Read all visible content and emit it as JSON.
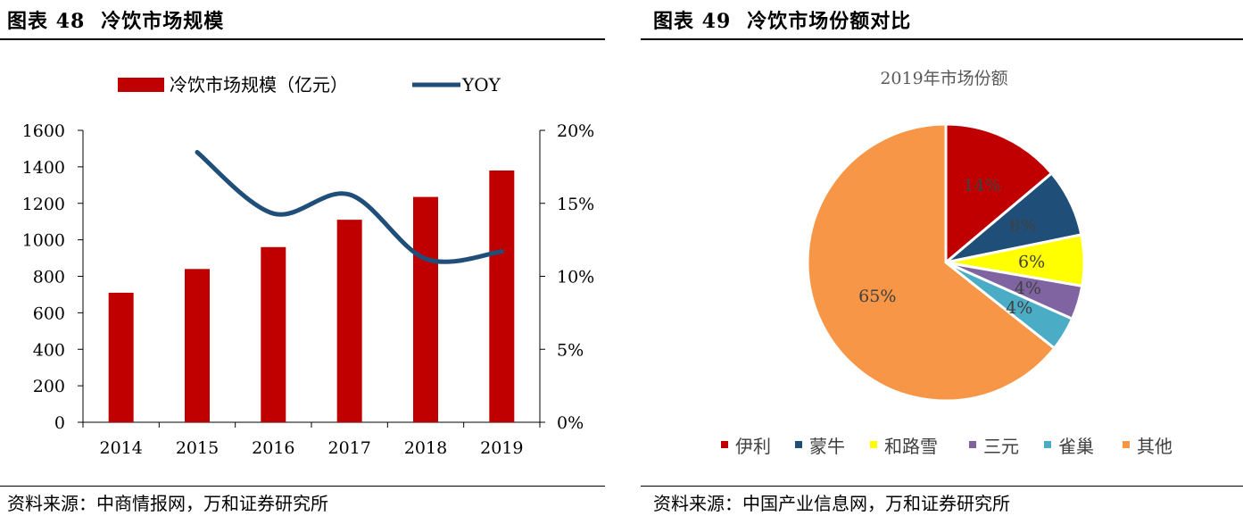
{
  "left": {
    "figure_no": "图表 48",
    "title": "冷饮市场规模",
    "source": "资料来源：中商情报网，万和证券研究所"
  },
  "right": {
    "figure_no": "图表 49",
    "title": "冷饮市场份额对比",
    "source": "资料来源：中国产业信息网，万和证券研究所"
  },
  "chart_data": [
    {
      "type": "bar",
      "title": "",
      "categories": [
        "2014",
        "2015",
        "2016",
        "2017",
        "2018",
        "2019"
      ],
      "series": [
        {
          "name": "冷饮市场规模（亿元）",
          "type": "bar",
          "axis": "left",
          "color": "#C00000",
          "values": [
            710,
            840,
            960,
            1110,
            1235,
            1380
          ]
        },
        {
          "name": "YOY",
          "type": "line",
          "axis": "right",
          "color": "#1F4E79",
          "values": [
            null,
            18.5,
            14.3,
            15.6,
            11.2,
            11.7
          ]
        }
      ],
      "y_left": {
        "min": 0,
        "max": 1600,
        "ticks": [
          "0",
          "200",
          "400",
          "600",
          "800",
          "1000",
          "1200",
          "1400",
          "1600"
        ]
      },
      "y_right": {
        "min": 0,
        "max": 20,
        "ticks": [
          "0%",
          "5%",
          "10%",
          "15%",
          "20%"
        ]
      },
      "legend_position": "top",
      "grid": false
    },
    {
      "type": "pie",
      "title": "2019年市场份额",
      "labels": [
        "伊利",
        "蒙牛",
        "和路雪",
        "三元",
        "雀巢",
        "其他"
      ],
      "values": [
        14,
        8,
        6,
        4,
        4,
        65
      ],
      "data_labels": [
        "14%",
        "8%",
        "6%",
        "4%",
        "4%",
        "65%"
      ],
      "colors": [
        "#C00000",
        "#1F4E79",
        "#FFFF00",
        "#8064A2",
        "#4BACC6",
        "#F79646"
      ],
      "legend_position": "bottom"
    }
  ]
}
